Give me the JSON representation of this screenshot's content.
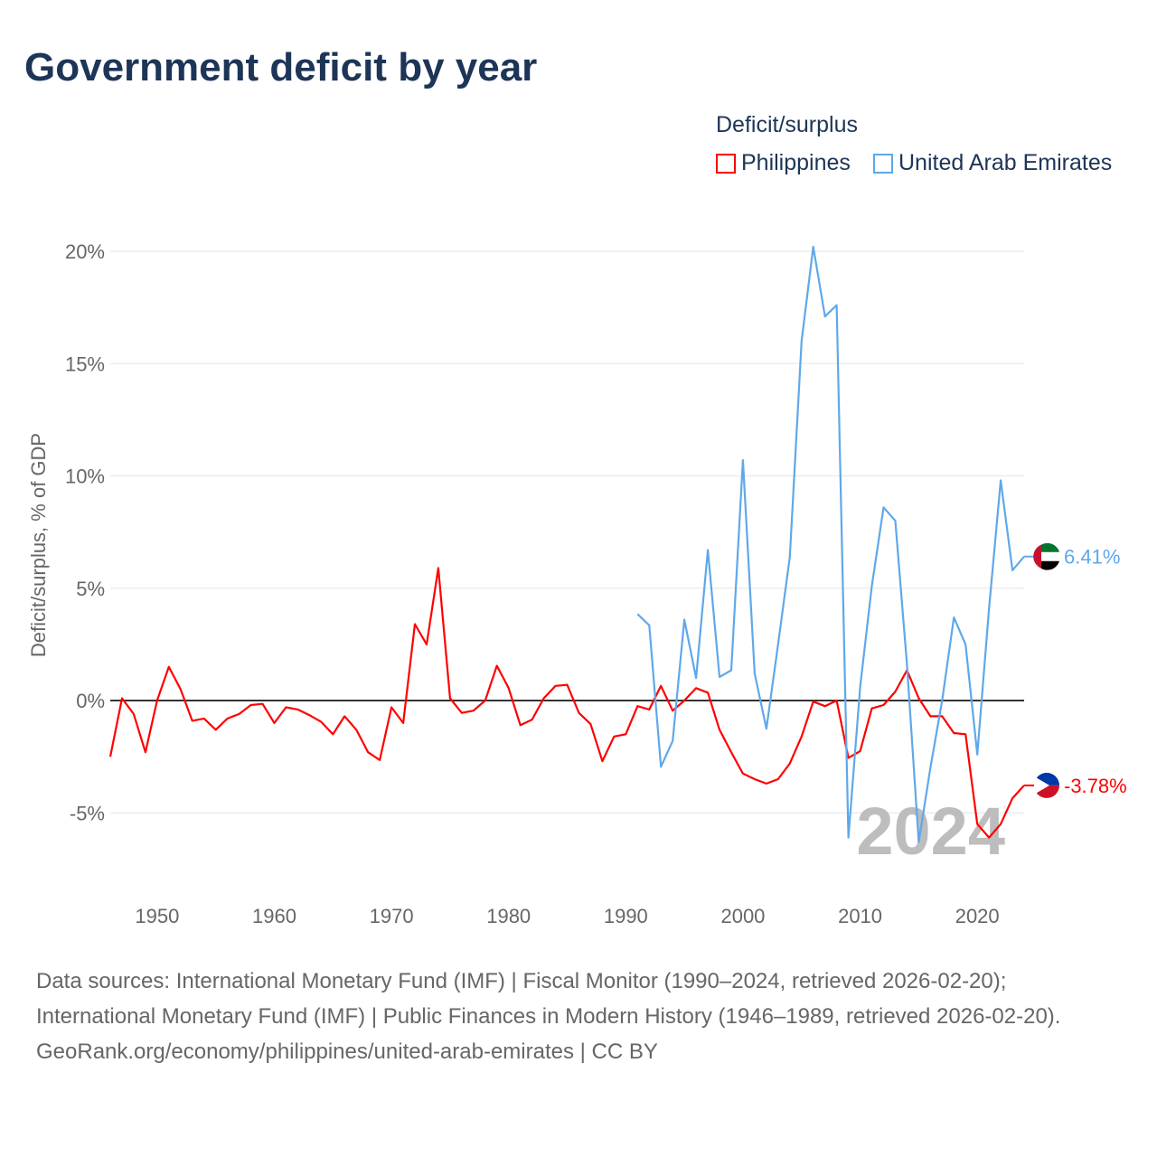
{
  "title": "Government deficit by year",
  "legend": {
    "title": "Deficit/surplus",
    "items": [
      "Philippines",
      "United Arab Emirates"
    ]
  },
  "source_lines": [
    "Data sources: International Monetary Fund (IMF) | Fiscal Monitor (1990–2024, retrieved 2026-02-20); International Monetary Fund (IMF) | Public Finances in Modern History (1946–1989, retrieved 2026-02-20).",
    "GeoRank.org/economy/philippines/united-arab-emirates | CC BY"
  ],
  "colors": {
    "Philippines": "#ff0000",
    "United Arab Emirates": "#5fa8ea"
  },
  "chart_data": {
    "type": "line",
    "title": "Government deficit by year",
    "xlabel": "",
    "ylabel": "Deficit/surplus, % of GDP",
    "xlim": [
      1946,
      2024
    ],
    "ylim": [
      -7,
      21
    ],
    "yticks": [
      -5,
      0,
      5,
      10,
      15,
      20
    ],
    "ytick_labels": [
      "-5%",
      "0%",
      "5%",
      "10%",
      "15%",
      "20%"
    ],
    "xticks": [
      1950,
      1960,
      1970,
      1980,
      1990,
      2000,
      2010,
      2020
    ],
    "year_label": "2024",
    "series": [
      {
        "name": "Philippines",
        "start_year": 1946,
        "end_label": "-3.78%",
        "values": [
          -2.5,
          0.1,
          -0.6,
          -2.3,
          0,
          1.5,
          0.5,
          -0.9,
          -0.8,
          -1.3,
          -0.8,
          -0.6,
          -0.2,
          -0.15,
          -1.0,
          -0.3,
          -0.4,
          -0.65,
          -0.95,
          -1.5,
          -0.7,
          -1.3,
          -2.3,
          -2.65,
          -0.3,
          -1.0,
          3.4,
          2.5,
          5.9,
          0.1,
          -0.55,
          -0.45,
          0,
          1.55,
          0.55,
          -1.1,
          -0.85,
          0.1,
          0.65,
          0.7,
          -0.55,
          -1.05,
          -2.7,
          -1.6,
          -1.5,
          -0.25,
          -0.4,
          0.65,
          -0.45,
          0,
          0.55,
          0.35,
          -1.3,
          -2.3,
          -3.25,
          -3.5,
          -3.7,
          -3.5,
          -2.8,
          -1.6,
          -0.05,
          -0.25,
          0,
          -2.55,
          -2.25,
          -0.35,
          -0.2,
          0.4,
          1.35,
          0.1,
          -0.7,
          -0.7,
          -1.45,
          -1.5,
          -5.5,
          -6.1,
          -5.5,
          -4.35,
          -3.78
        ]
      },
      {
        "name": "United Arab Emirates",
        "start_year": 1991,
        "end_label": "6.41%",
        "values": [
          3.85,
          3.35,
          -2.95,
          -1.8,
          3.6,
          1.0,
          6.7,
          1.05,
          1.35,
          10.7,
          1.2,
          -1.25,
          2.5,
          6.4,
          16.0,
          20.2,
          17.1,
          17.6,
          -6.1,
          0.6,
          5.1,
          8.6,
          8.0,
          1.6,
          -6.3,
          -3.0,
          0,
          3.7,
          2.5,
          -2.4,
          4.1,
          9.8,
          5.8,
          6.41
        ]
      }
    ]
  }
}
